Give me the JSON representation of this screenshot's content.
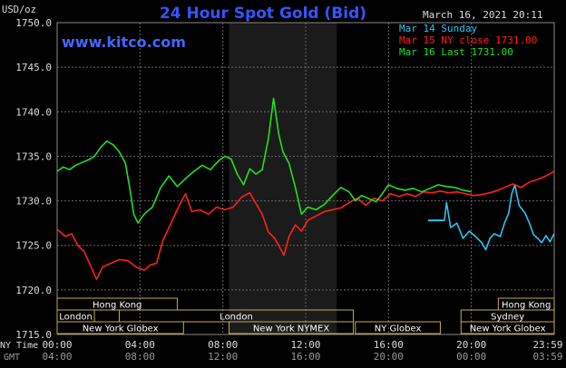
{
  "header": {
    "title": "24 Hour Spot Gold (Bid)",
    "unit": "USD/oz",
    "datetime": "March 16, 2021 20:11",
    "watermark": "www.kitco.com"
  },
  "legend": [
    {
      "label": "Mar 14 Sunday",
      "color": "#2ec4f0"
    },
    {
      "label": "Mar 15 NY close 1731.00",
      "color": "#ff2020"
    },
    {
      "label": "Mar 16 Last 1731.00",
      "color": "#22e022"
    }
  ],
  "colors": {
    "background": "#000000",
    "grid": "#6a6a6a",
    "title": "#3355ff",
    "watermark": "#4466ff",
    "shade": "#1b1b1b",
    "market_bar": "#caa84a",
    "sunday": "#2ec4f0",
    "ny_close": "#ff2020",
    "last": "#22e022"
  },
  "axis": {
    "row1_label": "NY Time",
    "row2_label": "GMT",
    "ny_ticks": [
      "00:00",
      "04:00",
      "08:00",
      "12:00",
      "16:00",
      "20:00",
      "23:59"
    ],
    "gmt_ticks": [
      "04:00",
      "08:00",
      "12:00",
      "16:00",
      "20:00",
      "00:00",
      "03:59"
    ]
  },
  "markets": [
    {
      "name": "Hong Kong",
      "start": 0,
      "end": 5.8,
      "row": 0
    },
    {
      "name": "Hong Kong",
      "start": 21.3,
      "end": 24,
      "row": 0
    },
    {
      "name": "London",
      "start": 0,
      "end": 1.8,
      "row": 1
    },
    {
      "name": "London",
      "start": 3.0,
      "end": 14.3,
      "row": 1
    },
    {
      "name": "Sydney",
      "start": 19.5,
      "end": 24,
      "row": 1
    },
    {
      "name": "New York Globex",
      "start": 0,
      "end": 6.1,
      "row": 2
    },
    {
      "name": "New York NYMEX",
      "start": 8.3,
      "end": 14.3,
      "row": 2
    },
    {
      "name": "NY Globex",
      "start": 14.4,
      "end": 18.5,
      "row": 2
    },
    {
      "name": "New York Globex",
      "start": 19.5,
      "end": 24,
      "row": 2
    }
  ],
  "chart_data": {
    "type": "line",
    "title": "24 Hour Spot Gold (Bid)",
    "ylabel": "USD/oz",
    "xlabel": "NY Time",
    "xlim": [
      0,
      24
    ],
    "ylim": [
      1715,
      1750
    ],
    "yticks": [
      1715,
      1720,
      1725,
      1730,
      1735,
      1740,
      1745,
      1750
    ],
    "shaded_region": [
      8.3,
      13.5
    ],
    "grid": true,
    "legend_position": "top-right",
    "series": [
      {
        "name": "Mar 14 Sunday",
        "color": "#2ec4f0",
        "points": [
          [
            18.0,
            1727.8
          ],
          [
            18.7,
            1727.8
          ],
          [
            18.8,
            1729.8
          ],
          [
            19.0,
            1727.0
          ],
          [
            19.3,
            1727.5
          ],
          [
            19.6,
            1725.8
          ],
          [
            19.9,
            1726.6
          ],
          [
            20.2,
            1726.0
          ],
          [
            20.5,
            1725.3
          ],
          [
            20.7,
            1724.5
          ],
          [
            20.9,
            1725.8
          ],
          [
            21.1,
            1726.3
          ],
          [
            21.4,
            1726.0
          ],
          [
            21.6,
            1727.5
          ],
          [
            21.8,
            1728.6
          ],
          [
            21.95,
            1730.8
          ],
          [
            22.1,
            1731.8
          ],
          [
            22.3,
            1729.5
          ],
          [
            22.6,
            1728.6
          ],
          [
            22.8,
            1727.5
          ],
          [
            23.0,
            1726.2
          ],
          [
            23.2,
            1725.8
          ],
          [
            23.4,
            1725.3
          ],
          [
            23.6,
            1726.1
          ],
          [
            23.8,
            1725.4
          ],
          [
            23.99,
            1726.3
          ]
        ]
      },
      {
        "name": "Mar 15 NY close 1731.00",
        "color": "#ff2020",
        "points": [
          [
            0,
            1726.8
          ],
          [
            0.4,
            1726.0
          ],
          [
            0.7,
            1726.3
          ],
          [
            1.0,
            1725.0
          ],
          [
            1.3,
            1724.3
          ],
          [
            1.6,
            1722.8
          ],
          [
            1.9,
            1721.2
          ],
          [
            2.2,
            1722.6
          ],
          [
            2.6,
            1723.0
          ],
          [
            3.0,
            1723.4
          ],
          [
            3.4,
            1723.3
          ],
          [
            3.8,
            1722.6
          ],
          [
            4.2,
            1722.2
          ],
          [
            4.5,
            1722.8
          ],
          [
            4.8,
            1723.0
          ],
          [
            5.1,
            1725.5
          ],
          [
            5.5,
            1727.5
          ],
          [
            5.9,
            1729.5
          ],
          [
            6.2,
            1730.8
          ],
          [
            6.5,
            1728.8
          ],
          [
            6.9,
            1729.0
          ],
          [
            7.3,
            1728.5
          ],
          [
            7.7,
            1729.3
          ],
          [
            8.1,
            1729.0
          ],
          [
            8.5,
            1729.3
          ],
          [
            8.9,
            1730.4
          ],
          [
            9.3,
            1730.9
          ],
          [
            9.6,
            1729.7
          ],
          [
            9.9,
            1728.5
          ],
          [
            10.2,
            1726.5
          ],
          [
            10.5,
            1725.8
          ],
          [
            10.7,
            1725.0
          ],
          [
            10.95,
            1723.9
          ],
          [
            11.2,
            1726.0
          ],
          [
            11.5,
            1727.3
          ],
          [
            11.8,
            1726.6
          ],
          [
            12.1,
            1727.8
          ],
          [
            12.5,
            1728.3
          ],
          [
            12.9,
            1728.8
          ],
          [
            13.3,
            1729.0
          ],
          [
            13.7,
            1729.2
          ],
          [
            14.1,
            1729.8
          ],
          [
            14.5,
            1730.3
          ],
          [
            14.9,
            1729.5
          ],
          [
            15.3,
            1730.3
          ],
          [
            15.7,
            1730.0
          ],
          [
            16.1,
            1730.8
          ],
          [
            16.5,
            1730.5
          ],
          [
            16.9,
            1730.8
          ],
          [
            17.3,
            1730.5
          ],
          [
            17.7,
            1731.0
          ],
          [
            18.1,
            1730.9
          ],
          [
            18.5,
            1731.1
          ],
          [
            18.9,
            1730.9
          ],
          [
            19.3,
            1731.0
          ],
          [
            19.7,
            1730.8
          ],
          [
            20.1,
            1730.6
          ],
          [
            20.5,
            1730.7
          ],
          [
            20.9,
            1730.9
          ],
          [
            21.3,
            1731.2
          ],
          [
            21.7,
            1731.6
          ],
          [
            22.0,
            1731.9
          ],
          [
            22.4,
            1731.5
          ],
          [
            22.8,
            1732.1
          ],
          [
            23.2,
            1732.4
          ],
          [
            23.6,
            1732.8
          ],
          [
            23.99,
            1733.3
          ]
        ]
      },
      {
        "name": "Mar 16 Last 1731.00",
        "color": "#22e022",
        "points": [
          [
            0,
            1733.3
          ],
          [
            0.3,
            1733.8
          ],
          [
            0.6,
            1733.5
          ],
          [
            0.9,
            1734.0
          ],
          [
            1.2,
            1734.3
          ],
          [
            1.5,
            1734.6
          ],
          [
            1.8,
            1735.0
          ],
          [
            2.1,
            1736.0
          ],
          [
            2.4,
            1736.7
          ],
          [
            2.7,
            1736.3
          ],
          [
            3.0,
            1735.5
          ],
          [
            3.3,
            1734.2
          ],
          [
            3.5,
            1731.5
          ],
          [
            3.7,
            1728.5
          ],
          [
            3.9,
            1727.5
          ],
          [
            4.2,
            1728.5
          ],
          [
            4.6,
            1729.3
          ],
          [
            5.0,
            1731.5
          ],
          [
            5.4,
            1732.8
          ],
          [
            5.8,
            1731.6
          ],
          [
            6.2,
            1732.5
          ],
          [
            6.6,
            1733.3
          ],
          [
            7.0,
            1734.0
          ],
          [
            7.4,
            1733.5
          ],
          [
            7.8,
            1734.5
          ],
          [
            8.1,
            1735.0
          ],
          [
            8.4,
            1734.7
          ],
          [
            8.7,
            1733.0
          ],
          [
            9.0,
            1731.8
          ],
          [
            9.3,
            1733.6
          ],
          [
            9.6,
            1733.0
          ],
          [
            9.9,
            1733.5
          ],
          [
            10.2,
            1737.0
          ],
          [
            10.45,
            1741.5
          ],
          [
            10.7,
            1737.5
          ],
          [
            10.9,
            1735.5
          ],
          [
            11.2,
            1734.2
          ],
          [
            11.5,
            1731.5
          ],
          [
            11.8,
            1728.5
          ],
          [
            12.1,
            1729.3
          ],
          [
            12.5,
            1729.0
          ],
          [
            12.9,
            1729.6
          ],
          [
            13.3,
            1730.6
          ],
          [
            13.7,
            1731.5
          ],
          [
            14.1,
            1731.0
          ],
          [
            14.4,
            1730.0
          ],
          [
            14.7,
            1730.6
          ],
          [
            15.1,
            1730.2
          ],
          [
            15.4,
            1729.9
          ],
          [
            15.7,
            1730.8
          ],
          [
            16.0,
            1731.8
          ],
          [
            16.4,
            1731.4
          ],
          [
            16.8,
            1731.2
          ],
          [
            17.2,
            1731.4
          ],
          [
            17.6,
            1731.0
          ],
          [
            18.0,
            1731.4
          ],
          [
            18.4,
            1731.8
          ],
          [
            18.8,
            1731.6
          ],
          [
            19.2,
            1731.5
          ],
          [
            19.6,
            1731.2
          ],
          [
            20.0,
            1731.0
          ]
        ]
      }
    ]
  }
}
